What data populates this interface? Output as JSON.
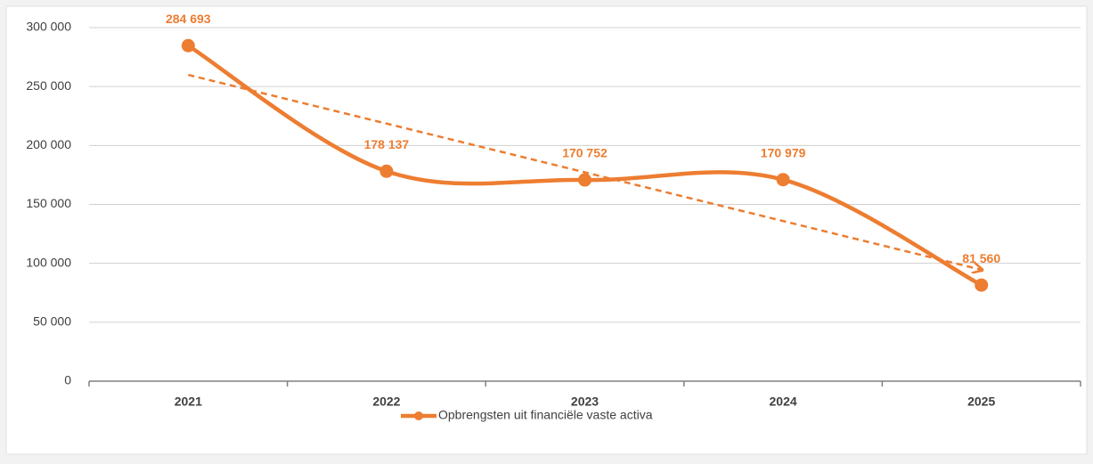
{
  "chart_data": {
    "type": "line",
    "categories": [
      "2021",
      "2022",
      "2023",
      "2024",
      "2025"
    ],
    "series": [
      {
        "name": "Opbrengsten uit financiële vaste activa",
        "color": "#ed7d31",
        "values": [
          284693,
          178137,
          170752,
          170979,
          81560
        ],
        "value_labels": [
          "284 693",
          "178 137",
          "170 752",
          "170 979",
          "81 560"
        ]
      }
    ],
    "ylim": [
      0,
      300000
    ],
    "yticks": [
      0,
      {
        "value": 50000,
        "label": "50 000"
      },
      {
        "value": 100000,
        "label": "100 000"
      },
      {
        "value": 150000,
        "label": "150 000"
      },
      {
        "value": 200000,
        "label": "200 000"
      },
      {
        "value": 250000,
        "label": "250 000"
      },
      {
        "value": 300000,
        "label": "300 000"
      }
    ],
    "grid": true,
    "smooth": true,
    "trendline": "linear",
    "legend": "bottom"
  }
}
